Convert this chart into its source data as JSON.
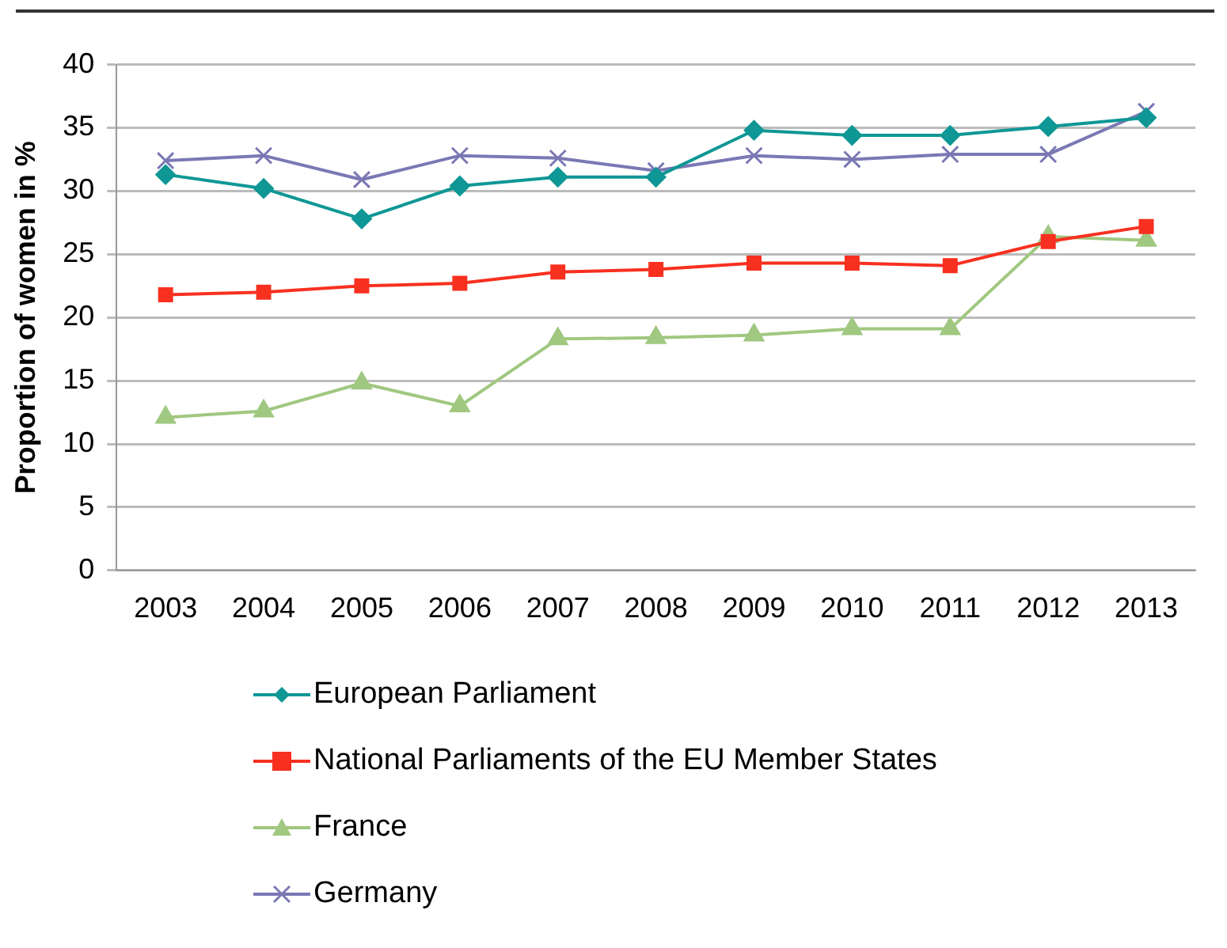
{
  "chart_data": {
    "type": "line",
    "ylabel": "Proportion of women in %",
    "categories": [
      "2003",
      "2004",
      "2005",
      "2006",
      "2007",
      "2008",
      "2009",
      "2010",
      "2011",
      "2012",
      "2013"
    ],
    "series": [
      {
        "name": "European Parliament",
        "color": "#0f9795",
        "marker": "diamond",
        "values": [
          31.3,
          30.2,
          27.8,
          30.4,
          31.1,
          31.1,
          34.8,
          34.4,
          34.4,
          35.1,
          35.8
        ]
      },
      {
        "name": "National Parliaments of the EU Member States",
        "color": "#f83020",
        "marker": "square",
        "values": [
          21.8,
          22.0,
          22.5,
          22.7,
          23.6,
          23.8,
          24.3,
          24.3,
          24.1,
          26.0,
          27.2
        ]
      },
      {
        "name": "France",
        "color": "#a0c880",
        "marker": "triangle",
        "values": [
          12.1,
          12.6,
          14.8,
          13.0,
          18.3,
          18.4,
          18.6,
          19.1,
          19.1,
          26.4,
          26.1
        ]
      },
      {
        "name": "Germany",
        "color": "#7a78b4",
        "marker": "cross",
        "values": [
          32.4,
          32.8,
          30.9,
          32.8,
          32.6,
          31.6,
          32.8,
          32.5,
          32.9,
          32.9,
          36.3
        ]
      }
    ],
    "ylim": [
      0,
      40
    ],
    "yticks": [
      0,
      5,
      10,
      15,
      20,
      25,
      30,
      35,
      40
    ],
    "grid": "y",
    "legend": "bottom left"
  }
}
